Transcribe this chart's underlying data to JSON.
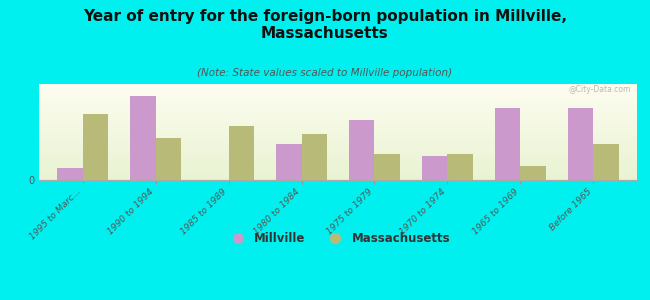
{
  "title": "Year of entry for the foreign-born population in Millville,\nMassachusetts",
  "subtitle": "(Note: State values scaled to Millville population)",
  "categories": [
    "1995 to Marc...",
    "1990 to 1994",
    "1985 to 1989",
    "1980 to 1984",
    "1975 to 1979",
    "1970 to 1974",
    "1965 to 1969",
    "Before 1965"
  ],
  "millville_values": [
    1,
    7,
    0,
    3,
    5,
    2,
    6,
    6
  ],
  "massachusetts_values": [
    5.5,
    3.5,
    4.5,
    3.8,
    2.2,
    2.2,
    1.2,
    3.0
  ],
  "millville_color": "#cc99cc",
  "massachusetts_color": "#b8bb78",
  "background_color": "#00efef",
  "bar_width": 0.35,
  "ylim": [
    0,
    8
  ],
  "legend_millville": "Millville",
  "legend_massachusetts": "Massachusetts",
  "watermark": "@City-Data.com",
  "title_fontsize": 11,
  "subtitle_fontsize": 7.5,
  "tick_fontsize": 6.5
}
